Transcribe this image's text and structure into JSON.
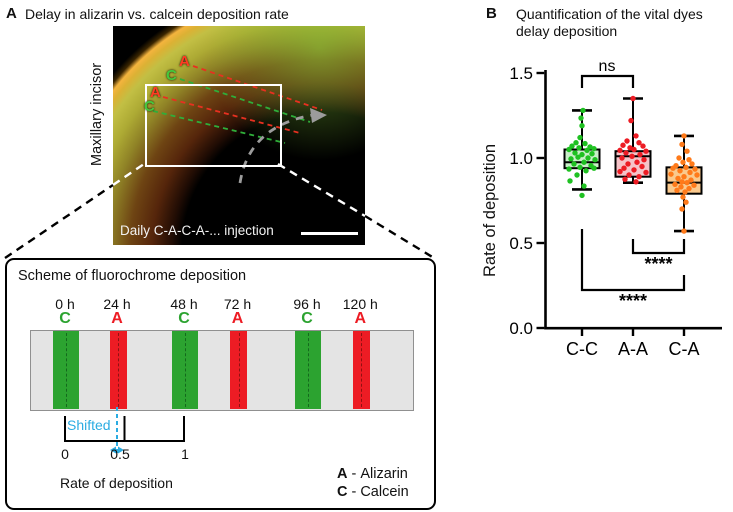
{
  "panel_a": {
    "label": "A",
    "title": "Delay in alizarin vs. calcein deposition rate",
    "micrograph": {
      "side_label": "Maxillary incisor",
      "caption": "Daily C-A-C-A-... injection",
      "annotations": [
        {
          "text": "A",
          "color": "#ff3b22"
        },
        {
          "text": "C",
          "color": "#46c83c"
        },
        {
          "text": "A",
          "color": "#ff3b22"
        },
        {
          "text": "C",
          "color": "#46c83c"
        }
      ]
    },
    "scheme": {
      "title": "Scheme of fluorochrome deposition",
      "timepoints": [
        {
          "time": "0 h",
          "dye": "C"
        },
        {
          "time": "24 h",
          "dye": "A"
        },
        {
          "time": "48 h",
          "dye": "C"
        },
        {
          "time": "72 h",
          "dye": "A"
        },
        {
          "time": "96 h",
          "dye": "C"
        },
        {
          "time": "120 h",
          "dye": "A"
        }
      ],
      "dye_colors": {
        "A": "#ed1c24",
        "C": "#2ca330"
      },
      "dye_dash_colors": {
        "A": "#8f1212",
        "C": "#14691d"
      },
      "shifted_label": "Shifted",
      "shifted_color": "#2bace2",
      "axis_ticks": [
        "0",
        "0.5",
        "1"
      ],
      "axis_label": "Rate of deposition",
      "legend": [
        {
          "letter": "A",
          "sep": "-",
          "name": "Alizarin",
          "color": "#ed1c24"
        },
        {
          "letter": "C",
          "sep": "-",
          "name": "Calcein",
          "color": "#2ca330"
        }
      ]
    }
  },
  "panel_b": {
    "label": "B",
    "title_line1": "Quantification of the vital dyes",
    "title_line2": "delay deposition"
  },
  "chart_data": {
    "type": "boxplot",
    "title": "Quantification of the vital dyes delay deposition",
    "ylabel": "Rate of deposition",
    "ylim": [
      0.0,
      1.5
    ],
    "yticks": [
      0,
      0.5,
      1,
      1.5
    ],
    "categories": [
      "C-C",
      "A-A",
      "C-A"
    ],
    "series": [
      {
        "name": "C-C",
        "dot_color": "#1fc122",
        "box_fill": "#c9efc9",
        "whisker_low": 0.815,
        "q1": 0.94,
        "median": 0.975,
        "q3": 1.05,
        "whisker_high": 1.28,
        "points": [
          [
            1,
            1.28
          ],
          [
            -1,
            1.235
          ],
          [
            0,
            1.19
          ],
          [
            -2,
            1.12
          ],
          [
            -6,
            1.09
          ],
          [
            3,
            1.085
          ],
          [
            -10,
            1.07
          ],
          [
            8,
            1.065
          ],
          [
            -3,
            1.06
          ],
          [
            12,
            1.055
          ],
          [
            -13,
            1.05
          ],
          [
            5,
            1.045
          ],
          [
            -7,
            1.03
          ],
          [
            10,
            1.025
          ],
          [
            0,
            1.02
          ],
          [
            -4,
            1.005
          ],
          [
            6,
            1.0
          ],
          [
            -11,
            0.995
          ],
          [
            13,
            0.99
          ],
          [
            2,
            0.975
          ],
          [
            -8,
            0.965
          ],
          [
            9,
            0.955
          ],
          [
            -2,
            0.945
          ],
          [
            12,
            0.94
          ],
          [
            -13,
            0.935
          ],
          [
            4,
            0.925
          ],
          [
            -5,
            0.9
          ],
          [
            -12,
            0.865
          ],
          [
            2,
            0.835
          ],
          [
            0,
            0.78
          ]
        ]
      },
      {
        "name": "A-A",
        "dot_color": "#ed1c24",
        "box_fill": "#f6c3c8",
        "whisker_low": 0.855,
        "q1": 0.89,
        "median": 1.01,
        "q3": 1.04,
        "whisker_high": 1.35,
        "points": [
          [
            0,
            1.35
          ],
          [
            -2,
            1.22
          ],
          [
            3,
            1.13
          ],
          [
            -6,
            1.1
          ],
          [
            6,
            1.09
          ],
          [
            -10,
            1.075
          ],
          [
            10,
            1.07
          ],
          [
            -3,
            1.06
          ],
          [
            1,
            1.05
          ],
          [
            -13,
            1.045
          ],
          [
            13,
            1.04
          ],
          [
            -7,
            1.03
          ],
          [
            7,
            1.02
          ],
          [
            -1,
            1.01
          ],
          [
            -11,
            1.0
          ],
          [
            11,
            0.99
          ],
          [
            4,
            0.975
          ],
          [
            -5,
            0.965
          ],
          [
            9,
            0.95
          ],
          [
            -9,
            0.94
          ],
          [
            1,
            0.93
          ],
          [
            -13,
            0.92
          ],
          [
            13,
            0.915
          ],
          [
            -4,
            0.9
          ],
          [
            6,
            0.89
          ],
          [
            -8,
            0.875
          ],
          [
            3,
            0.86
          ]
        ]
      },
      {
        "name": "C-A",
        "dot_color": "#ff7a1a",
        "box_fill": "#fac98d",
        "whisker_low": 0.57,
        "q1": 0.79,
        "median": 0.855,
        "q3": 0.945,
        "whisker_high": 1.13,
        "points": [
          [
            0,
            1.13
          ],
          [
            -2,
            1.08
          ],
          [
            3,
            1.04
          ],
          [
            -5,
            1.0
          ],
          [
            5,
            0.99
          ],
          [
            -1,
            0.975
          ],
          [
            8,
            0.965
          ],
          [
            -8,
            0.955
          ],
          [
            2,
            0.945
          ],
          [
            -11,
            0.94
          ],
          [
            11,
            0.935
          ],
          [
            -4,
            0.925
          ],
          [
            6,
            0.915
          ],
          [
            -13,
            0.905
          ],
          [
            13,
            0.9
          ],
          [
            0,
            0.89
          ],
          [
            -6,
            0.88
          ],
          [
            7,
            0.87
          ],
          [
            -2,
            0.86
          ],
          [
            3,
            0.855
          ],
          [
            -9,
            0.845
          ],
          [
            10,
            0.84
          ],
          [
            -3,
            0.83
          ],
          [
            5,
            0.82
          ],
          [
            -7,
            0.81
          ],
          [
            1,
            0.8
          ],
          [
            -1,
            0.77
          ],
          [
            2,
            0.74
          ],
          [
            -2,
            0.7
          ],
          [
            0,
            0.57
          ]
        ]
      }
    ],
    "comparisons": [
      {
        "label": "ns",
        "from": "C-C",
        "to": "A-A"
      },
      {
        "label": "****",
        "from": "A-A",
        "to": "C-A"
      },
      {
        "label": "****",
        "from": "C-C",
        "to": "C-A"
      }
    ]
  }
}
